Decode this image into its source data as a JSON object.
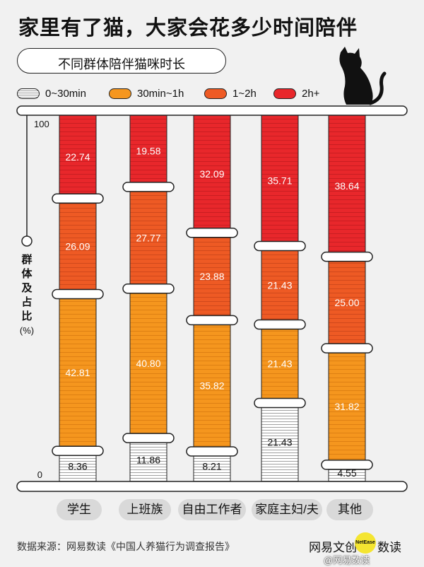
{
  "title": "家里有了猫，大家会花多少时间陪伴",
  "subtitle": "不同群体陪伴猫咪时长",
  "legend": [
    {
      "label": "0~30min",
      "color": "#ffffff",
      "pattern": "hatched"
    },
    {
      "label": "30min~1h",
      "color": "#f5961e"
    },
    {
      "label": "1~2h",
      "color": "#ee5a24"
    },
    {
      "label": "2h+",
      "color": "#e8272b"
    }
  ],
  "axis": {
    "top_label": "100",
    "bottom_label": "0",
    "ylabel": "群体及占比(%)"
  },
  "chart_data": {
    "type": "bar",
    "stacked": true,
    "title": "家里有了猫，大家会花多少时间陪伴",
    "subtitle": "不同群体陪伴猫咪时长",
    "ylabel": "群体及占比(%)",
    "ylim": [
      0,
      100
    ],
    "categories": [
      "学生",
      "上班族",
      "自由工作者",
      "家庭主妇/夫",
      "其他"
    ],
    "series": [
      {
        "name": "0~30min",
        "color": "#ffffff",
        "values": [
          8.36,
          11.86,
          8.21,
          21.43,
          4.55
        ]
      },
      {
        "name": "30min~1h",
        "color": "#f5961e",
        "values": [
          42.81,
          40.8,
          35.82,
          21.43,
          31.82
        ]
      },
      {
        "name": "1~2h",
        "color": "#ee5a24",
        "values": [
          26.09,
          27.77,
          23.88,
          21.43,
          25.0
        ]
      },
      {
        "name": "2h+",
        "color": "#e8272b",
        "values": [
          22.74,
          19.58,
          32.09,
          35.71,
          38.64
        ]
      }
    ],
    "data_labels": [
      [
        "8.36",
        "11.86",
        "8.21",
        "21.43",
        "4.55"
      ],
      [
        "42.81",
        "40.80",
        "35.82",
        "21.43",
        "31.82"
      ],
      [
        "26.09",
        "27.77",
        "23.88",
        "21.43",
        "25.00"
      ],
      [
        "22.74",
        "19.58",
        "32.09",
        "35.71",
        "38.64"
      ]
    ],
    "legend_position": "top-left"
  },
  "footer": {
    "source": "数据来源：网易数读《中国人养猫行为调查报告》",
    "brand": "网易文创",
    "brand_badge": "NetEase",
    "brand_tail": "数读",
    "watermark": "@网易数读"
  }
}
